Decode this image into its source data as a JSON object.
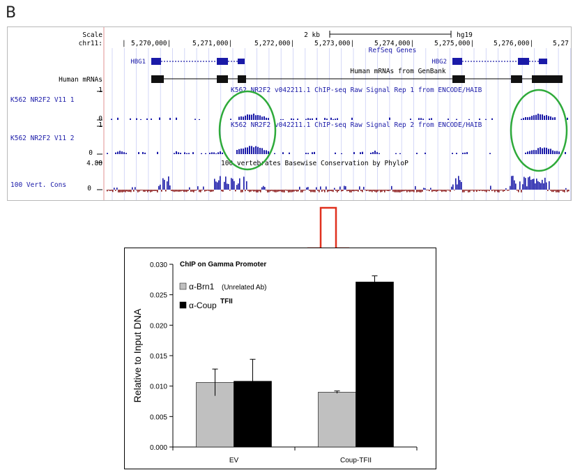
{
  "panel_label": "B",
  "genome_browser": {
    "scale_label": "Scale",
    "chrom_label": "chr11:",
    "scale_bar_label": "2 kb",
    "assembly": "hg19",
    "positions": [
      "5,270,000|",
      "5,271,000|",
      "5,272,000|",
      "5,273,000|",
      "5,274,000|",
      "5,275,000|",
      "5,276,000|",
      "5,27"
    ],
    "refseq_title": "RefSeq Genes",
    "genes": [
      "HBG1",
      "HBG2"
    ],
    "mrna_track_label": "Human mRNAs",
    "mrna_title": "Human mRNAs from GenBank",
    "tracks": [
      {
        "label": "K562 NR2F2 V11 1",
        "title": "K562 NR2F2 v042211.1 ChIP-seq Raw Signal Rep 1 from ENCODE/HAIB",
        "max": "1",
        "min": "0"
      },
      {
        "label": "K562 NR2F2 V11 2",
        "title": "K562 NR2F2 v042211.1 ChIP-seq Raw Signal Rep 2 from ENCODE/HAIB",
        "max": "1",
        "min": "0"
      }
    ],
    "cons_label": "100 Vert. Cons",
    "cons_title": "100 vertebrates Basewise Conservation by PhyloP",
    "cons_max": "4.88",
    "cons_min": "0",
    "colors": {
      "track_blue": "#1a1aa8",
      "highlight_green": "#2eaa3a",
      "cons_red": "#8b1a1a"
    }
  },
  "arrow_color": "#e0301e",
  "chart_data": {
    "type": "bar",
    "title": "ChIP on Gamma Promoter",
    "ylabel": "Relative to Input DNA",
    "xlabel": "",
    "categories": [
      "EV",
      "Coup-TFII"
    ],
    "ylim": [
      0,
      0.03
    ],
    "yticks": [
      "0.000",
      "0.005",
      "0.010",
      "0.015",
      "0.020",
      "0.025",
      "0.030"
    ],
    "series": [
      {
        "name": "α-Brn1",
        "note": "(Unrelated Ab)",
        "color": "#c0c0c0",
        "values": [
          0.0106,
          0.009
        ],
        "errors": [
          0.0022,
          0.0002
        ]
      },
      {
        "name": "α-Coup",
        "note": "TFII",
        "color": "#000000",
        "values": [
          0.0108,
          0.0271
        ],
        "errors": [
          0.0036,
          0.001
        ]
      }
    ],
    "legend_position": "top-left",
    "grid": false
  }
}
